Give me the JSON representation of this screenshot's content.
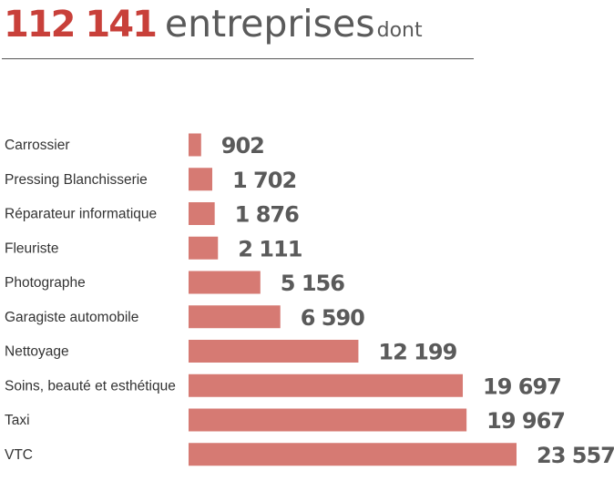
{
  "header": {
    "total": "112 141",
    "headline": "entreprises",
    "suffix": "dont"
  },
  "colors": {
    "accent": "#c8403a",
    "bar": "#d67a73",
    "text": "#5a5a5a"
  },
  "chart_data": {
    "type": "bar",
    "orientation": "horizontal",
    "categories": [
      "Carrossier",
      "Pressing Blanchisserie",
      "Réparateur informatique",
      "Fleuriste",
      "Photographe",
      "Garagiste automobile",
      "Nettoyage",
      "Soins, beauté et esthétique",
      "Taxi",
      "VTC"
    ],
    "values": [
      902,
      1702,
      1876,
      2111,
      5156,
      6590,
      12199,
      19697,
      19967,
      23557
    ],
    "value_labels": [
      "902",
      "1 702",
      "1 876",
      "2 111",
      "5 156",
      "6 590",
      "12 199",
      "19 697",
      "19 967",
      "23 557"
    ],
    "xlim": [
      0,
      23557
    ],
    "grid": false,
    "legend": "none"
  }
}
